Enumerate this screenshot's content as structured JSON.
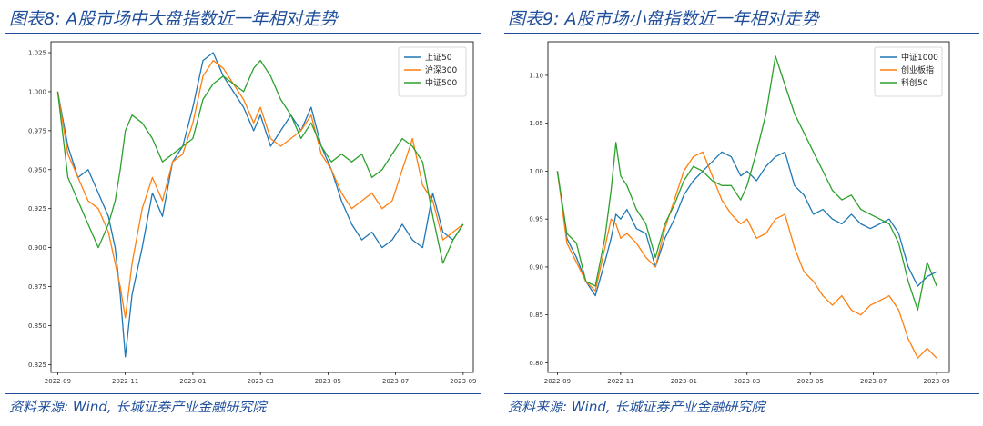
{
  "charts": [
    {
      "title": "图表8: A股市场中大盘指数近一年相对走势",
      "source": "资料来源: Wind, 长城证券产业金融研究院"
    },
    {
      "title": "图表9: A股市场小盘指数近一年相对走势",
      "source": "资料来源: Wind, 长城证券产业金融研究院"
    }
  ],
  "chart_data": [
    {
      "type": "line",
      "title": "图表8: A股市场中大盘指数近一年相对走势",
      "x_ticks": [
        "2022-09",
        "2022-11",
        "2023-01",
        "2023-03",
        "2023-05",
        "2023-07",
        "2023-09"
      ],
      "x_ticks_month": [
        0,
        2,
        4,
        6,
        8,
        10,
        12
      ],
      "xlim": [
        -0.2,
        12.3
      ],
      "y_ticks": [
        "0.825",
        "0.850",
        "0.875",
        "0.900",
        "0.925",
        "0.950",
        "0.975",
        "1.000",
        "1.025"
      ],
      "y_tick_values": [
        0.825,
        0.85,
        0.875,
        0.9,
        0.925,
        0.95,
        0.975,
        1.0,
        1.025
      ],
      "ylim": [
        0.82,
        1.032
      ],
      "grid": false,
      "legend_position": "top-right",
      "x": [
        0,
        0.3,
        0.6,
        0.9,
        1.2,
        1.5,
        1.7,
        1.85,
        2.0,
        2.2,
        2.5,
        2.8,
        3.1,
        3.4,
        3.7,
        4.0,
        4.3,
        4.6,
        4.9,
        5.2,
        5.5,
        5.8,
        6.0,
        6.3,
        6.6,
        6.9,
        7.2,
        7.5,
        7.8,
        8.1,
        8.4,
        8.7,
        9.0,
        9.3,
        9.6,
        9.9,
        10.2,
        10.5,
        10.8,
        11.1,
        11.4,
        11.7,
        12.0
      ],
      "series": [
        {
          "name": "上证50",
          "color": "#1f77b4",
          "values": [
            1.0,
            0.965,
            0.945,
            0.95,
            0.935,
            0.92,
            0.9,
            0.87,
            0.83,
            0.87,
            0.9,
            0.935,
            0.92,
            0.955,
            0.965,
            0.99,
            1.02,
            1.025,
            1.01,
            1.0,
            0.99,
            0.975,
            0.985,
            0.965,
            0.975,
            0.985,
            0.975,
            0.99,
            0.965,
            0.95,
            0.93,
            0.915,
            0.905,
            0.91,
            0.9,
            0.905,
            0.915,
            0.905,
            0.9,
            0.935,
            0.91,
            0.905,
            0.915
          ]
        },
        {
          "name": "沪深300",
          "color": "#ff7f0e",
          "values": [
            1.0,
            0.96,
            0.945,
            0.93,
            0.925,
            0.91,
            0.89,
            0.875,
            0.855,
            0.89,
            0.925,
            0.945,
            0.93,
            0.955,
            0.96,
            0.98,
            1.01,
            1.02,
            1.015,
            1.005,
            0.995,
            0.98,
            0.99,
            0.97,
            0.965,
            0.97,
            0.975,
            0.985,
            0.96,
            0.95,
            0.935,
            0.925,
            0.93,
            0.935,
            0.925,
            0.93,
            0.95,
            0.97,
            0.94,
            0.93,
            0.905,
            0.91,
            0.915
          ]
        },
        {
          "name": "中证500",
          "color": "#2ca02c",
          "values": [
            1.0,
            0.945,
            0.93,
            0.915,
            0.9,
            0.915,
            0.93,
            0.95,
            0.975,
            0.985,
            0.98,
            0.97,
            0.955,
            0.96,
            0.965,
            0.97,
            0.995,
            1.005,
            1.01,
            1.005,
            1.0,
            1.015,
            1.02,
            1.01,
            0.995,
            0.985,
            0.97,
            0.98,
            0.965,
            0.955,
            0.96,
            0.955,
            0.96,
            0.945,
            0.95,
            0.96,
            0.97,
            0.965,
            0.955,
            0.92,
            0.89,
            0.905,
            0.915
          ]
        }
      ]
    },
    {
      "type": "line",
      "title": "图表9: A股市场小盘指数近一年相对走势",
      "x_ticks": [
        "2022-09",
        "2022-11",
        "2023-01",
        "2023-03",
        "2023-05",
        "2023-07",
        "2023-09"
      ],
      "x_ticks_month": [
        0,
        2,
        4,
        6,
        8,
        10,
        12
      ],
      "xlim": [
        -0.3,
        12.4
      ],
      "y_ticks": [
        "0.80",
        "0.85",
        "0.90",
        "0.95",
        "1.00",
        "1.05",
        "1.10"
      ],
      "y_tick_values": [
        0.8,
        0.85,
        0.9,
        0.95,
        1.0,
        1.05,
        1.1
      ],
      "ylim": [
        0.79,
        1.135
      ],
      "grid": false,
      "legend_position": "top-right",
      "x": [
        0,
        0.3,
        0.6,
        0.9,
        1.2,
        1.5,
        1.7,
        1.85,
        2.0,
        2.2,
        2.5,
        2.8,
        3.1,
        3.4,
        3.7,
        4.0,
        4.3,
        4.6,
        4.9,
        5.2,
        5.5,
        5.8,
        6.0,
        6.3,
        6.6,
        6.9,
        7.2,
        7.5,
        7.8,
        8.1,
        8.4,
        8.7,
        9.0,
        9.3,
        9.6,
        9.9,
        10.2,
        10.5,
        10.8,
        11.1,
        11.4,
        11.7,
        12.0
      ],
      "series": [
        {
          "name": "中证1000",
          "color": "#1f77b4",
          "values": [
            1.0,
            0.93,
            0.91,
            0.885,
            0.87,
            0.905,
            0.93,
            0.955,
            0.95,
            0.96,
            0.94,
            0.935,
            0.9,
            0.93,
            0.95,
            0.975,
            0.99,
            1.0,
            1.01,
            1.02,
            1.015,
            0.995,
            1.0,
            0.99,
            1.005,
            1.015,
            1.02,
            0.985,
            0.975,
            0.955,
            0.96,
            0.95,
            0.945,
            0.955,
            0.945,
            0.94,
            0.945,
            0.95,
            0.935,
            0.9,
            0.88,
            0.89,
            0.895
          ]
        },
        {
          "name": "创业板指",
          "color": "#ff7f0e",
          "values": [
            1.0,
            0.925,
            0.905,
            0.885,
            0.875,
            0.92,
            0.95,
            0.945,
            0.93,
            0.935,
            0.925,
            0.91,
            0.9,
            0.94,
            0.97,
            1.0,
            1.015,
            1.02,
            0.995,
            0.97,
            0.955,
            0.945,
            0.95,
            0.93,
            0.935,
            0.95,
            0.955,
            0.92,
            0.895,
            0.885,
            0.87,
            0.86,
            0.87,
            0.855,
            0.85,
            0.86,
            0.865,
            0.87,
            0.855,
            0.825,
            0.805,
            0.815,
            0.805
          ]
        },
        {
          "name": "科创50",
          "color": "#2ca02c",
          "values": [
            1.0,
            0.935,
            0.925,
            0.885,
            0.88,
            0.93,
            0.98,
            1.03,
            0.995,
            0.985,
            0.96,
            0.945,
            0.91,
            0.945,
            0.965,
            0.99,
            1.005,
            1.0,
            0.99,
            0.985,
            0.985,
            0.97,
            0.985,
            1.02,
            1.06,
            1.12,
            1.09,
            1.06,
            1.04,
            1.02,
            1.0,
            0.98,
            0.97,
            0.975,
            0.96,
            0.955,
            0.95,
            0.945,
            0.925,
            0.885,
            0.855,
            0.905,
            0.88
          ]
        }
      ]
    }
  ]
}
